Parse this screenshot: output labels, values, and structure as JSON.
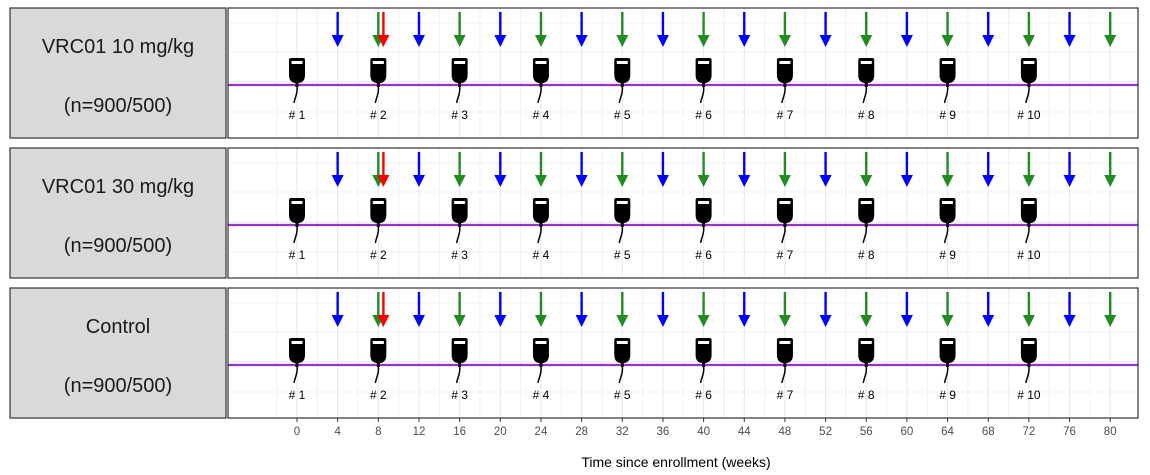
{
  "chart_data": {
    "type": "timeline",
    "xlabel": "Time since enrollment (weeks)",
    "xlim": [
      -3.5,
      83.5
    ],
    "x_ticks": [
      0,
      4,
      8,
      12,
      16,
      20,
      24,
      28,
      32,
      36,
      40,
      44,
      48,
      52,
      56,
      60,
      64,
      68,
      72,
      76,
      80
    ],
    "grid": true,
    "panels": [
      {
        "label": "VRC01 10 mg/kg",
        "sublabel": "(n=900/500)"
      },
      {
        "label": "VRC01 30 mg/kg",
        "sublabel": "(n=900/500)"
      },
      {
        "label": "Control",
        "sublabel": "(n=900/500)"
      }
    ],
    "infusions": [
      {
        "week": 0,
        "label": "# 1"
      },
      {
        "week": 8,
        "label": "# 2"
      },
      {
        "week": 16,
        "label": "# 3"
      },
      {
        "week": 24,
        "label": "# 4"
      },
      {
        "week": 32,
        "label": "# 5"
      },
      {
        "week": 40,
        "label": "# 6"
      },
      {
        "week": 48,
        "label": "# 7"
      },
      {
        "week": 56,
        "label": "# 8"
      },
      {
        "week": 64,
        "label": "# 9"
      },
      {
        "week": 72,
        "label": "# 10"
      }
    ],
    "visit_series": [
      {
        "color": "#0000ff",
        "weeks": [
          4,
          12,
          20,
          28,
          36,
          44,
          52,
          60,
          68,
          76
        ]
      },
      {
        "color": "#228b22",
        "weeks": [
          8,
          16,
          24,
          32,
          40,
          48,
          56,
          64,
          72,
          80
        ]
      },
      {
        "color": "#ff0000",
        "weeks": [
          8.5
        ]
      }
    ],
    "timeline_color": "#9932cc",
    "strip_color": "#d9d9d9"
  }
}
